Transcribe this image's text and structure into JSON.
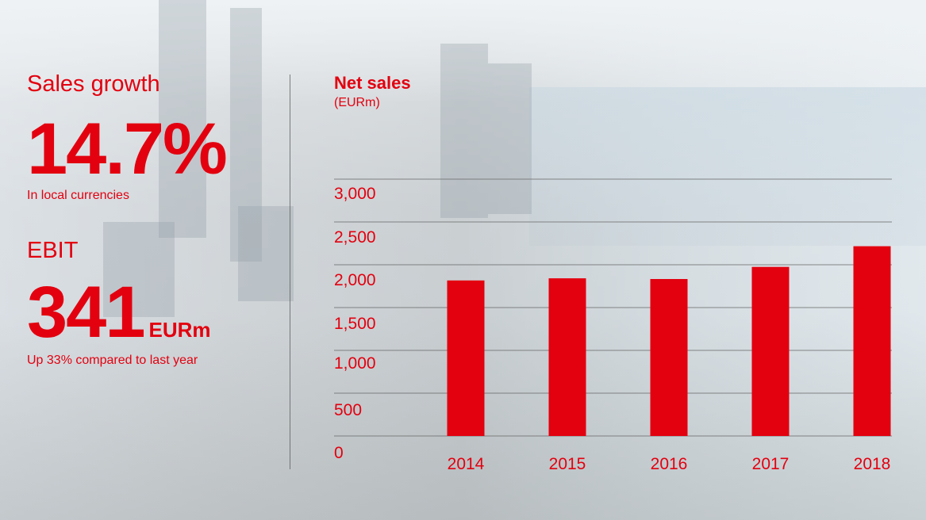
{
  "left": {
    "sales_growth": {
      "label": "Sales growth",
      "value": "14.7%",
      "note": "In local currencies"
    },
    "ebit": {
      "label": "EBIT",
      "value": "341",
      "unit": "EURm",
      "note": "Up 33% compared to last year"
    }
  },
  "colors": {
    "accent": "#e3000f",
    "gridline": "#6b6b6b"
  },
  "chart_data": {
    "type": "bar",
    "title": "Net sales",
    "subtitle": "(EURm)",
    "categories": [
      "2014",
      "2015",
      "2016",
      "2017",
      "2018"
    ],
    "values": [
      2180,
      2210,
      2200,
      2370,
      2660
    ],
    "yticks": [
      "0",
      "500",
      "1,000",
      "1,500",
      "2,000",
      "2,500",
      "3,000"
    ],
    "ylim": [
      0,
      3000
    ],
    "xlabel": "",
    "ylabel": "",
    "grid": true,
    "legend": "none"
  }
}
